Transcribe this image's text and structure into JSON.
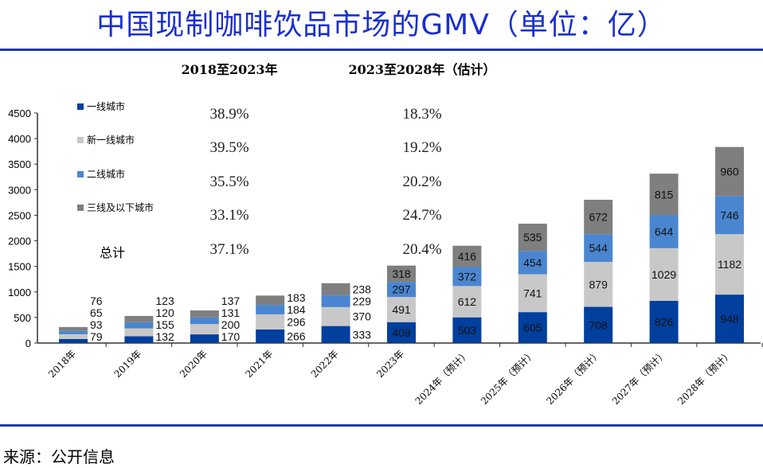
{
  "title": "中国现制咖啡饮品市场的GMV（单位：亿）",
  "source": "来源：公开信息",
  "chart_data": {
    "type": "bar",
    "stacked": true,
    "title": "中国现制咖啡饮品市场的GMV（单位：亿）",
    "categories": [
      "2018年",
      "2019年",
      "2020年",
      "2021年",
      "2022年",
      "2023年",
      "2024年（预计）",
      "2025年（预计）",
      "2026年（预计）",
      "2027年（预计）",
      "2028年（预计）"
    ],
    "series": [
      {
        "name": "一线城市",
        "color": "#003f9e",
        "values": [
          79,
          132,
          170,
          266,
          333,
          409,
          503,
          605,
          708,
          826,
          948
        ]
      },
      {
        "name": "新一线城市",
        "color": "#c8c8c8",
        "values": [
          93,
          155,
          200,
          296,
          370,
          491,
          612,
          741,
          879,
          1029,
          1182
        ]
      },
      {
        "name": "二线城市",
        "color": "#4a86d0",
        "values": [
          65,
          120,
          131,
          184,
          229,
          297,
          372,
          454,
          544,
          644,
          746
        ]
      },
      {
        "name": "三线及以下城市",
        "color": "#7f7f7f",
        "values": [
          76,
          123,
          137,
          183,
          238,
          318,
          416,
          535,
          672,
          815,
          960
        ]
      }
    ],
    "ylim": [
      0,
      4500
    ],
    "yticks": [
      0,
      500,
      1000,
      1500,
      2000,
      2500,
      3000,
      3500,
      4000,
      4500
    ],
    "grid": false,
    "legend_placement": "top-left",
    "cagr_table": {
      "headers": [
        "2018至2023年",
        "2023至2028年（估计）"
      ],
      "rows": [
        {
          "label": "一线城市",
          "a": "38.9%",
          "b": "18.3%"
        },
        {
          "label": "新一线城市",
          "a": "39.5%",
          "b": "19.2%"
        },
        {
          "label": "二线城市",
          "a": "35.5%",
          "b": "20.2%"
        },
        {
          "label": "三线及以下城市",
          "a": "33.1%",
          "b": "24.7%"
        },
        {
          "label": "总计",
          "a": "37.1%",
          "b": "20.4%"
        }
      ]
    }
  }
}
